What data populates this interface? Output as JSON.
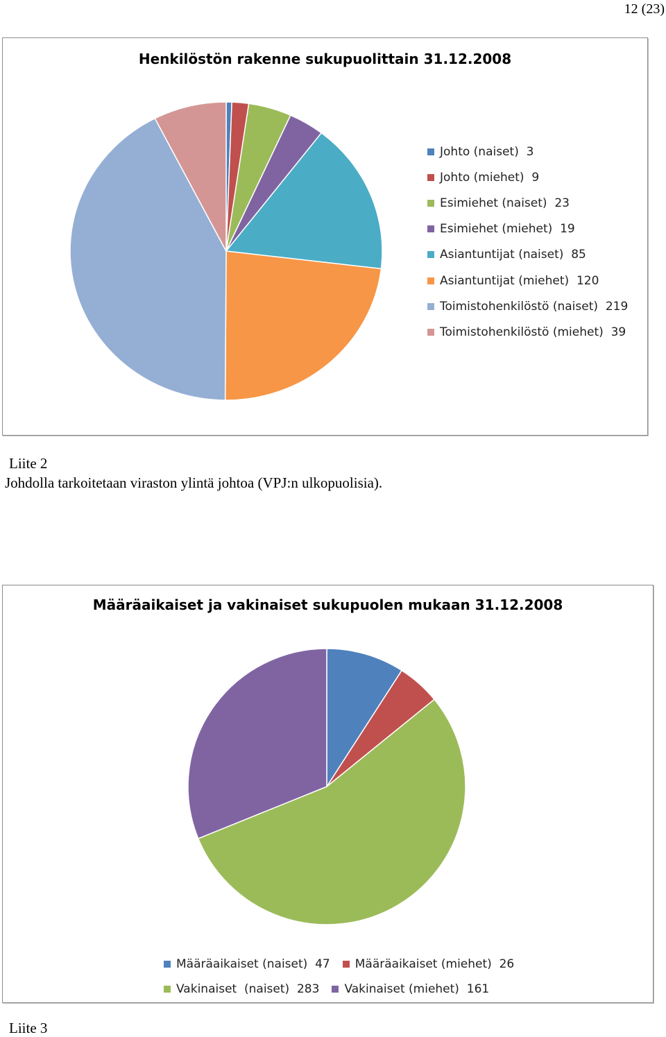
{
  "page": {
    "number": "12 (23)",
    "liite2": "Liite 2",
    "note": "Johdolla tarkoitetaan viraston ylintä johtoa (VPJ:n ulkopuolisia).",
    "liite3": "Liite 3"
  },
  "chart_data": [
    {
      "type": "pie",
      "title": "Henkilöstön rakenne sukupuolittain 31.12.2008",
      "legend_position": "right",
      "slices": [
        {
          "label": "Johto (naiset)",
          "value": 3,
          "value_label": "3",
          "color": "#4F81BD"
        },
        {
          "label": "Johto (miehet)",
          "value": 9,
          "value_label": "9",
          "color": "#C0504D"
        },
        {
          "label": "Esimiehet (naiset)",
          "value": 23,
          "value_label": "23",
          "color": "#9BBB59"
        },
        {
          "label": "Esimiehet (miehet)",
          "value": 19,
          "value_label": "19",
          "color": "#8064A2"
        },
        {
          "label": "Asiantuntijat (naiset)",
          "value": 85,
          "value_label": "85",
          "color": "#4BACC6"
        },
        {
          "label": "Asiantuntijat (miehet)",
          "value": 120,
          "value_label": "120",
          "color": "#F79646"
        },
        {
          "label": "Toimistohenkilöstö (naiset)",
          "value": 219,
          "value_label": "219",
          "color": "#95AFD4"
        },
        {
          "label": "Toimistohenkilöstö (miehet)",
          "value": 39,
          "value_label": "39",
          "color": "#D49694"
        }
      ]
    },
    {
      "type": "pie",
      "title": "Määräaikaiset ja vakinaiset sukupuolen mukaan 31.12.2008",
      "legend_position": "bottom",
      "slices": [
        {
          "label": "Määräaikaiset (naiset)",
          "value": 47,
          "value_label": "47",
          "color": "#4F81BD"
        },
        {
          "label": "Määräaikaiset (miehet)",
          "value": 26,
          "value_label": "26",
          "color": "#C0504D"
        },
        {
          "label": "Vakinaiset  (naiset)",
          "value": 283,
          "value_label": "283",
          "color": "#9BBB59"
        },
        {
          "label": "Vakinaiset (miehet)",
          "value": 161,
          "value_label": "161",
          "color": "#8064A2"
        }
      ]
    }
  ]
}
